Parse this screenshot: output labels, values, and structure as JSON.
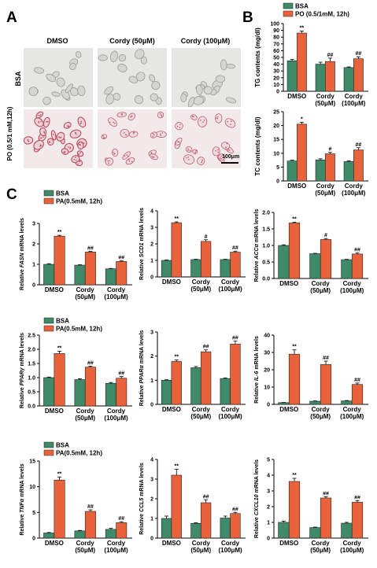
{
  "panel_a": {
    "letter": "A",
    "columns": [
      "DMSO",
      "Cordy (50μM)",
      "Cordy (100μM)"
    ],
    "rows": [
      "BSA",
      "PO (0.5/1 mM,12h)"
    ],
    "scale_bar": "100μm"
  },
  "panel_b": {
    "letter": "B"
  },
  "panel_c": {
    "letter": "C"
  },
  "colors": {
    "control": "#3f8a68",
    "treated": "#e8633c",
    "bsa_micro_bg": "#e6e6e4",
    "po_micro_bg": "#f1e9ea"
  },
  "chart_data": [
    {
      "id": "b-tg",
      "panel": "B",
      "type": "bar",
      "ylabel": "TG contents (mg/dl)",
      "ylim": [
        0,
        100
      ],
      "yticks": [
        0,
        10,
        20,
        30,
        40,
        50,
        60,
        70,
        80,
        90,
        100
      ],
      "categories": [
        "DMSO",
        "Cordy\n(50μM)",
        "Cordy\n(100μM)"
      ],
      "legend": [
        "BSA",
        "PO (0.5/1mM, 12h)"
      ],
      "series": [
        {
          "name": "BSA",
          "values": [
            45,
            40,
            35
          ],
          "err": [
            2,
            3,
            1
          ]
        },
        {
          "name": "PO (0.5/1mM, 12h)",
          "values": [
            86,
            44,
            48
          ],
          "err": [
            3,
            5,
            3
          ]
        }
      ],
      "marks": [
        "**",
        "##",
        "##"
      ]
    },
    {
      "id": "b-tc",
      "panel": "B",
      "type": "bar",
      "ylabel": "TC contents (mg/dl)",
      "ylim": [
        0,
        25
      ],
      "yticks": [
        0,
        5,
        10,
        15,
        20,
        25
      ],
      "categories": [
        "DMSO",
        "Cordy\n(50μM)",
        "Cordy\n(100μM)"
      ],
      "series": [
        {
          "name": "BSA",
          "values": [
            7.2,
            7.6,
            7.0
          ],
          "err": [
            0.3,
            0.4,
            0.3
          ]
        },
        {
          "name": "PO (0.5/1mM, 12h)",
          "values": [
            20.5,
            9.8,
            11.2
          ],
          "err": [
            0.7,
            0.5,
            0.8
          ]
        }
      ],
      "marks": [
        "*",
        "#",
        "##"
      ]
    },
    {
      "id": "c-fasn",
      "panel": "C",
      "type": "bar",
      "ylabel_prefix": "Relative ",
      "ylabel_gene": "FASN",
      "ylabel_suffix": " mRNA levels",
      "ylim": [
        0,
        3
      ],
      "yticks": [
        0,
        1,
        2,
        3
      ],
      "categories": [
        "DMSO",
        "Cordy\n(50μM)",
        "Cordy\n(100μM)"
      ],
      "legend": [
        "BSA",
        "PA(0.5mM, 12h)"
      ],
      "series": [
        {
          "name": "BSA",
          "values": [
            1.0,
            0.96,
            0.78
          ],
          "err": [
            0.03,
            0.02,
            0.02
          ]
        },
        {
          "name": "PA(0.5mM, 12h)",
          "values": [
            2.38,
            1.6,
            1.14
          ],
          "err": [
            0.04,
            0.03,
            0.03
          ]
        }
      ],
      "marks": [
        "**",
        "##",
        "##"
      ]
    },
    {
      "id": "c-scd1",
      "panel": "C",
      "type": "bar",
      "ylabel_prefix": "Relative ",
      "ylabel_gene": "SCD1",
      "ylabel_suffix": " mRNA levels",
      "ylim": [
        0,
        4
      ],
      "yticks": [
        0,
        1,
        2,
        3,
        4
      ],
      "categories": [
        "DMSO",
        "Cordy\n(50μM)",
        "Cordy\n(100μM)"
      ],
      "series": [
        {
          "name": "BSA",
          "values": [
            1.0,
            1.05,
            1.05
          ],
          "err": [
            0.03,
            0.02,
            0.02
          ]
        },
        {
          "name": "PA(0.5mM, 12h)",
          "values": [
            3.28,
            2.15,
            1.5
          ],
          "err": [
            0.05,
            0.1,
            0.06
          ]
        }
      ],
      "marks": [
        "**",
        "#",
        "##"
      ]
    },
    {
      "id": "c-acc",
      "panel": "C",
      "type": "bar",
      "ylabel_prefix": "Relative ",
      "ylabel_gene": "ACCα",
      "ylabel_suffix": " mRNA levels",
      "ylim": [
        0,
        2.0
      ],
      "yticks": [
        0.0,
        0.5,
        1.0,
        1.5,
        2.0
      ],
      "categories": [
        "DMSO",
        "Cordy\n(50μM)",
        "Cordy\n(100μM)"
      ],
      "series": [
        {
          "name": "BSA",
          "values": [
            1.0,
            0.75,
            0.57
          ],
          "err": [
            0.02,
            0.01,
            0.01
          ]
        },
        {
          "name": "PA(0.5mM, 12h)",
          "values": [
            1.68,
            1.18,
            0.74
          ],
          "err": [
            0.02,
            0.03,
            0.03
          ]
        }
      ],
      "marks": [
        "**",
        "#",
        "##"
      ]
    },
    {
      "id": "c-ppar-gamma",
      "panel": "C",
      "type": "bar",
      "ylabel_prefix": "Relative ",
      "ylabel_gene": "PPARγ",
      "ylabel_suffix": " mRNA levels",
      "ylim": [
        0,
        2.5
      ],
      "yticks": [
        0.0,
        0.5,
        1.0,
        1.5,
        2.0,
        2.5
      ],
      "categories": [
        "DMSO",
        "Cordy\n(50μM)",
        "Cordy\n(100μM)"
      ],
      "legend": [
        "BSA",
        "PA(0.5mM, 12h)"
      ],
      "series": [
        {
          "name": "BSA",
          "values": [
            1.0,
            0.93,
            0.8
          ],
          "err": [
            0.02,
            0.03,
            0.03
          ]
        },
        {
          "name": "PA(0.5mM, 12h)",
          "values": [
            1.85,
            1.37,
            0.98
          ],
          "err": [
            0.08,
            0.03,
            0.06
          ]
        }
      ],
      "marks": [
        "**",
        "##",
        "##"
      ]
    },
    {
      "id": "c-ppar-alpha",
      "panel": "C",
      "type": "bar",
      "ylabel_prefix": "Relative ",
      "ylabel_gene": "PPARα",
      "ylabel_suffix": " mRNA levels",
      "ylim": [
        0,
        3
      ],
      "yticks": [
        0,
        1,
        2,
        3
      ],
      "categories": [
        "DMSO",
        "Cordy\n(50μM)",
        "Cordy\n(100μM)"
      ],
      "series": [
        {
          "name": "BSA",
          "values": [
            1.0,
            1.52,
            1.07
          ],
          "err": [
            0.02,
            0.05,
            0.03
          ]
        },
        {
          "name": "PA(0.5mM, 12h)",
          "values": [
            1.78,
            2.18,
            2.5
          ],
          "err": [
            0.06,
            0.08,
            0.12
          ]
        }
      ],
      "marks": [
        "**",
        "##",
        "##"
      ]
    },
    {
      "id": "c-il6",
      "panel": "C",
      "type": "bar",
      "ylabel_prefix": "Relative ",
      "ylabel_gene": "IL-6",
      "ylabel_suffix": " mRNA levels",
      "ylim": [
        0,
        40
      ],
      "yticks": [
        0,
        10,
        20,
        30,
        40
      ],
      "categories": [
        "DMSO",
        "Cordy\n(50μM)",
        "Cordy\n(100μM)"
      ],
      "series": [
        {
          "name": "BSA",
          "values": [
            1.0,
            1.8,
            2.0
          ],
          "err": [
            0.1,
            0.2,
            0.2
          ]
        },
        {
          "name": "PA(0.5mM, 12h)",
          "values": [
            29,
            23,
            11.5
          ],
          "err": [
            2.5,
            2.0,
            0.8
          ]
        }
      ],
      "marks": [
        "**",
        "##",
        "##"
      ]
    },
    {
      "id": "c-tnf",
      "panel": "C",
      "type": "bar",
      "ylabel_prefix": "Relative ",
      "ylabel_gene": "TNFα",
      "ylabel_suffix": " mRNA levels",
      "ylim": [
        0,
        15
      ],
      "yticks": [
        0,
        5,
        10,
        15
      ],
      "categories": [
        "DMSO",
        "Cordy\n(50μM)",
        "Cordy\n(100μM)"
      ],
      "legend": [
        "BSA",
        "PA(0.5mM, 12h)"
      ],
      "series": [
        {
          "name": "BSA",
          "values": [
            1.0,
            1.4,
            1.7
          ],
          "err": [
            0.1,
            0.1,
            0.2
          ]
        },
        {
          "name": "PA(0.5mM, 12h)",
          "values": [
            11.3,
            5.2,
            3.0
          ],
          "err": [
            0.6,
            0.3,
            0.2
          ]
        }
      ],
      "marks": [
        "**",
        "##",
        "##"
      ]
    },
    {
      "id": "c-ccl5",
      "panel": "C",
      "type": "bar",
      "ylabel_prefix": "Relative ",
      "ylabel_gene": "CCL5",
      "ylabel_suffix": " mRNA levels",
      "ylim": [
        0,
        4
      ],
      "yticks": [
        0,
        1,
        2,
        3,
        4
      ],
      "categories": [
        "DMSO",
        "Cordy\n(50μM)",
        "Cordy\n(100μM)"
      ],
      "series": [
        {
          "name": "BSA",
          "values": [
            1.0,
            0.75,
            1.02
          ],
          "err": [
            0.12,
            0.03,
            0.1
          ]
        },
        {
          "name": "PA(0.5mM, 12h)",
          "values": [
            3.2,
            1.8,
            1.25
          ],
          "err": [
            0.3,
            0.15,
            0.06
          ]
        }
      ],
      "marks": [
        "**",
        "##",
        "##"
      ]
    },
    {
      "id": "c-cxcl10",
      "panel": "C",
      "type": "bar",
      "ylabel_prefix": "Relative ",
      "ylabel_gene": "CXCL10",
      "ylabel_suffix": " mRNA levels",
      "ylim": [
        0,
        5
      ],
      "yticks": [
        0,
        1,
        2,
        3,
        4,
        5
      ],
      "categories": [
        "DMSO",
        "Cordy\n(50μM)",
        "Cordy\n(100μM)"
      ],
      "series": [
        {
          "name": "BSA",
          "values": [
            1.0,
            0.67,
            0.95
          ],
          "err": [
            0.08,
            0.03,
            0.05
          ]
        },
        {
          "name": "PA(0.5mM, 12h)",
          "values": [
            3.6,
            2.55,
            2.28
          ],
          "err": [
            0.2,
            0.08,
            0.1
          ]
        }
      ],
      "marks": [
        "**",
        "##",
        "##"
      ]
    }
  ]
}
